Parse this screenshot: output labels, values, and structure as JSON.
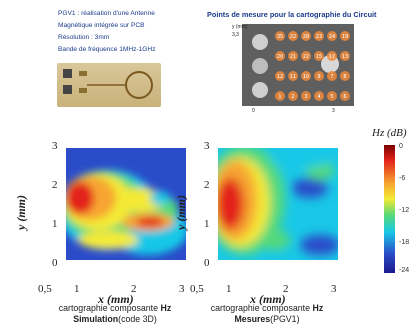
{
  "info": {
    "lines": [
      "PGV1 : réalisation d'une Antenne",
      "Magnétique intégrée sur PCB",
      "Résolution : 3mm",
      "Bande de fréquence 1MHz-1GHz"
    ]
  },
  "mesh": {
    "title": "Points de mesure pour la cartographie du Circuit",
    "y_axis_label": "y (mm)",
    "y_max_label": "3,3",
    "x_tick_0": "0",
    "x_tick_3": "3",
    "points": [
      "35",
      "22",
      "28",
      "23",
      "24",
      "19",
      "20",
      "21",
      "22",
      "15",
      "17",
      "13",
      "12",
      "11",
      "10",
      "9",
      "7",
      "8",
      "1",
      "2",
      "3",
      "4",
      "5",
      "6"
    ]
  },
  "plots": {
    "colorbar_title": "Hz (dB)",
    "colorbar_ticks": [
      "0",
      "-6",
      "-12",
      "-18",
      "-24"
    ],
    "left": {
      "y_ticks": [
        "3",
        "2",
        "1",
        "0"
      ],
      "x_ticks": [
        "0,5",
        "1",
        "2",
        "3"
      ],
      "xlabel": "x (mm)",
      "ylabel": "y (mm)",
      "caption_line1": "cartographie composante",
      "caption_bold": "Hz",
      "caption_line2_bold": "Simulation",
      "caption_line2_rest": "(code 3D)"
    },
    "right": {
      "y_ticks": [
        "3",
        "2",
        "1",
        "0"
      ],
      "x_ticks": [
        "0,5",
        "1",
        "2",
        "3"
      ],
      "xlabel": "x (mm)",
      "ylabel": "y (mm)",
      "caption_line1": "cartographie composante",
      "caption_bold": "Hz",
      "caption_line2_bold": "Mesures",
      "caption_line2_rest": "(PGV1)"
    }
  },
  "colors": {
    "blue": "#2b4cc9",
    "cyan": "#19c8e6",
    "green": "#55d97b",
    "yellow": "#f4ea34",
    "orange": "#f7a531",
    "red": "#e3231a",
    "title_blue": "#1a3a8a"
  }
}
